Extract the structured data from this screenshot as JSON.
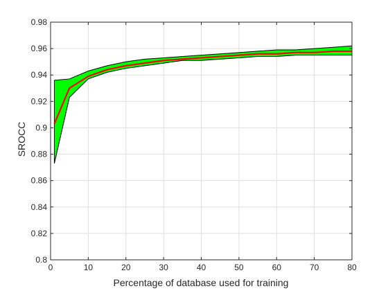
{
  "chart_data": {
    "type": "area",
    "title": "",
    "xlabel": "Percentage of database used for training",
    "ylabel": "SROCC",
    "xlim": [
      0,
      80
    ],
    "ylim": [
      0.8,
      0.98
    ],
    "xticks": [
      0,
      10,
      20,
      30,
      40,
      50,
      60,
      70,
      80
    ],
    "xtick_labels": [
      "0",
      "10",
      "20",
      "30",
      "40",
      "50",
      "60",
      "70",
      "80"
    ],
    "yticks": [
      0.8,
      0.82,
      0.84,
      0.86,
      0.88,
      0.9,
      0.92,
      0.94,
      0.96,
      0.98
    ],
    "ytick_labels": [
      "0.8",
      "0.82",
      "0.84",
      "0.86",
      "0.88",
      "0.9",
      "0.92",
      "0.94",
      "0.96",
      "0.98"
    ],
    "grid": true,
    "legend": "none",
    "x": [
      1,
      5,
      10,
      15,
      20,
      25,
      30,
      35,
      40,
      45,
      50,
      55,
      60,
      65,
      70,
      75,
      80
    ],
    "series": [
      {
        "role": "mean",
        "values": [
          0.903,
          0.93,
          0.939,
          0.944,
          0.947,
          0.949,
          0.951,
          0.952,
          0.953,
          0.954,
          0.955,
          0.956,
          0.956,
          0.957,
          0.957,
          0.958,
          0.958
        ],
        "color": "#ff0000"
      },
      {
        "role": "upper",
        "values": [
          0.936,
          0.937,
          0.943,
          0.947,
          0.95,
          0.952,
          0.953,
          0.954,
          0.955,
          0.956,
          0.957,
          0.958,
          0.959,
          0.959,
          0.96,
          0.961,
          0.962
        ],
        "color": "#000000"
      },
      {
        "role": "lower",
        "values": [
          0.873,
          0.923,
          0.937,
          0.942,
          0.945,
          0.947,
          0.949,
          0.951,
          0.951,
          0.952,
          0.953,
          0.954,
          0.954,
          0.955,
          0.955,
          0.955,
          0.955
        ],
        "color": "#000000"
      }
    ],
    "band_fill_color": "#00ff00",
    "axes_color": "#262626",
    "grid_color": "#dfdfdf"
  }
}
